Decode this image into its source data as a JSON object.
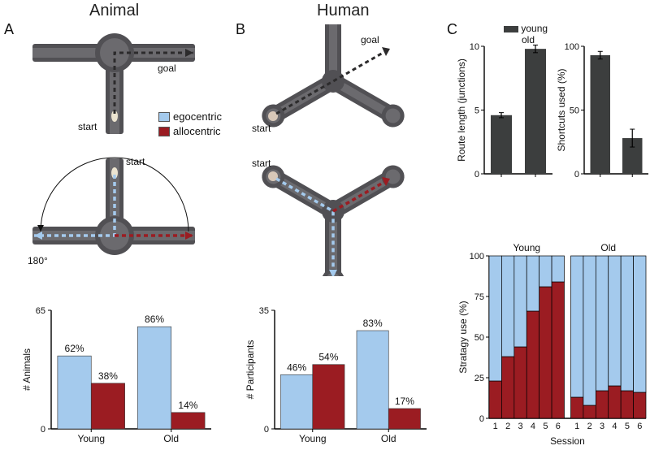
{
  "colors": {
    "egocentric": "#a4caed",
    "allocentric": "#9b1c22",
    "maze_body": "#515054",
    "maze_slot": "#6b6a6e",
    "arrow_dark": "#2c2b2c",
    "bar_dark": "#3c3e3e",
    "axis": "#000000",
    "background": "#ffffff"
  },
  "headers": {
    "animal": "Animal",
    "human": "Human"
  },
  "panel_letters": {
    "A": "A",
    "B": "B",
    "C": "C"
  },
  "maze_labels": {
    "start": "start",
    "goal": "goal",
    "rotation": "180°"
  },
  "legend": {
    "egocentric": "egocentric",
    "allocentric": "allocentric"
  },
  "panelA_chart": {
    "type": "bar",
    "ylabel": "# Animals",
    "ymax": 65,
    "yticks": [
      0,
      65
    ],
    "groups": [
      "Young",
      "Old"
    ],
    "series": [
      {
        "name": "egocentric",
        "values": [
          40,
          56
        ],
        "labels": [
          "62%",
          "86%"
        ],
        "color_key": "egocentric"
      },
      {
        "name": "allocentric",
        "values": [
          25,
          9
        ],
        "labels": [
          "38%",
          "14%"
        ],
        "color_key": "allocentric"
      }
    ],
    "bar_width": 0.42
  },
  "panelB_chart": {
    "type": "bar",
    "ylabel": "# Participants",
    "ymax": 35,
    "yticks": [
      0,
      35
    ],
    "groups": [
      "Young",
      "Old"
    ],
    "series": [
      {
        "name": "egocentric",
        "values": [
          16,
          29
        ],
        "labels": [
          "46%",
          "83%"
        ],
        "color_key": "egocentric"
      },
      {
        "name": "allocentric",
        "values": [
          19,
          6
        ],
        "labels": [
          "54%",
          "17%"
        ],
        "color_key": "allocentric"
      }
    ],
    "bar_width": 0.42
  },
  "panelC_top": {
    "legend": {
      "young": "young",
      "old": "old"
    },
    "route_length": {
      "ylabel": "Route length (junctions)",
      "ymax": 10,
      "yticks": [
        0,
        5,
        10
      ],
      "groups": [
        "young",
        "old"
      ],
      "values": [
        4.6,
        9.8
      ],
      "errors": [
        0.2,
        0.3
      ],
      "bar_color_key": "bar_dark"
    },
    "shortcuts": {
      "ylabel": "Shortcuts used (%)",
      "ymax": 100,
      "yticks": [
        0,
        50,
        100
      ],
      "groups": [
        "young",
        "old"
      ],
      "values": [
        93,
        28
      ],
      "errors": [
        3,
        7
      ],
      "bar_color_key": "bar_dark"
    }
  },
  "panelC_bottom": {
    "type": "stacked_bar",
    "ylabel": "Stratagy use (%)",
    "xlabel": "Session",
    "sessions": [
      "1",
      "2",
      "3",
      "4",
      "5",
      "6"
    ],
    "ymax": 100,
    "yticks": [
      0,
      25,
      50,
      75,
      100
    ],
    "groups": {
      "Young": {
        "allocentric_pct": [
          23,
          38,
          44,
          66,
          81,
          84
        ]
      },
      "Old": {
        "allocentric_pct": [
          13,
          8,
          17,
          20,
          17,
          16
        ]
      }
    },
    "colors": {
      "top_key": "egocentric",
      "bottom_key": "allocentric"
    }
  }
}
